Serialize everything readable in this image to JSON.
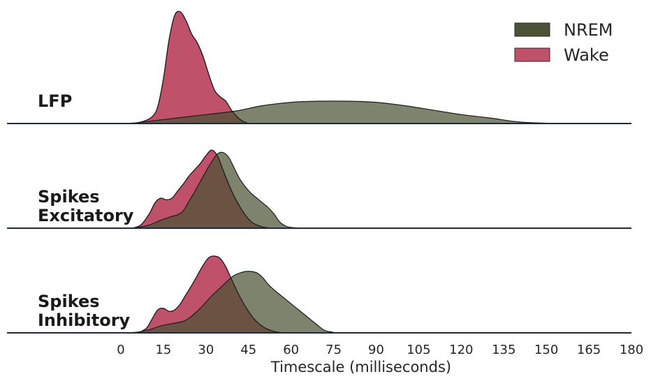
{
  "chart_data": {
    "type": "area",
    "xlabel": "Timescale (milliseconds)",
    "xlim": [
      -40,
      180
    ],
    "xticks": [
      0,
      15,
      30,
      45,
      60,
      75,
      90,
      105,
      120,
      135,
      150,
      165,
      180
    ],
    "legend": {
      "placement": "top-right",
      "entries": [
        "NREM",
        "Wake"
      ]
    },
    "colors": {
      "NREM": "#4b5334",
      "Wake": "#c0516a",
      "overlap": "#45301f",
      "baseline": "#1e2c3a"
    },
    "rows": [
      {
        "label": "LFP",
        "series": [
          {
            "name": "Wake",
            "x": [
              0,
              5,
              8,
              11,
              13,
              15,
              17,
              19,
              21,
              23,
              25,
              27,
              29,
              31,
              33,
              35,
              37,
              39,
              41,
              43,
              45
            ],
            "y": [
              0,
              0.005,
              0.02,
              0.06,
              0.15,
              0.4,
              0.75,
              0.97,
              1.0,
              0.92,
              0.8,
              0.72,
              0.6,
              0.44,
              0.3,
              0.24,
              0.2,
              0.12,
              0.06,
              0.02,
              0
            ]
          },
          {
            "name": "NREM",
            "x": [
              0,
              5,
              10,
              20,
              30,
              40,
              50,
              60,
              70,
              80,
              90,
              100,
              110,
              120,
              130,
              140,
              150,
              160,
              170
            ],
            "y": [
              0,
              0.005,
              0.02,
              0.05,
              0.08,
              0.11,
              0.16,
              0.19,
              0.2,
              0.2,
              0.19,
              0.16,
              0.12,
              0.08,
              0.05,
              0.015,
              0.003,
              0.0005,
              0
            ]
          }
        ]
      },
      {
        "label": "Spikes\nExcitatory",
        "series": [
          {
            "name": "Wake",
            "x": [
              4,
              7,
              10,
              12,
              14,
              16,
              18,
              20,
              22,
              24,
              26,
              28,
              30,
              32,
              34,
              36,
              38,
              40,
              42,
              44,
              46,
              48,
              50,
              52,
              54
            ],
            "y": [
              0,
              0.04,
              0.18,
              0.32,
              0.38,
              0.36,
              0.38,
              0.47,
              0.56,
              0.66,
              0.74,
              0.82,
              0.92,
              0.99,
              0.92,
              0.74,
              0.56,
              0.4,
              0.27,
              0.16,
              0.08,
              0.04,
              0.015,
              0.005,
              0
            ]
          },
          {
            "name": "NREM",
            "x": [
              2,
              6,
              10,
              14,
              18,
              20,
              22,
              24,
              26,
              28,
              30,
              32,
              34,
              36,
              38,
              40,
              42,
              44,
              46,
              48,
              50,
              52,
              54,
              56,
              58,
              60,
              64
            ],
            "y": [
              0,
              0.01,
              0.04,
              0.1,
              0.15,
              0.17,
              0.22,
              0.34,
              0.46,
              0.59,
              0.72,
              0.84,
              0.94,
              0.96,
              0.9,
              0.76,
              0.62,
              0.52,
              0.44,
              0.38,
              0.32,
              0.26,
              0.18,
              0.08,
              0.03,
              0.01,
              0
            ]
          }
        ]
      },
      {
        "label": "Spikes\nInhibitory",
        "series": [
          {
            "name": "Wake",
            "x": [
              6,
              9,
              11,
              13,
              15,
              17,
              19,
              21,
              23,
              25,
              27,
              29,
              31,
              33,
              35,
              37,
              39,
              41,
              43,
              45,
              47,
              49,
              51,
              53,
              55,
              57
            ],
            "y": [
              0,
              0.06,
              0.18,
              0.3,
              0.32,
              0.28,
              0.3,
              0.38,
              0.5,
              0.62,
              0.75,
              0.88,
              0.98,
              1.0,
              0.97,
              0.86,
              0.7,
              0.54,
              0.4,
              0.28,
              0.18,
              0.11,
              0.06,
              0.03,
              0.01,
              0
            ]
          },
          {
            "name": "NREM",
            "x": [
              2,
              6,
              10,
              14,
              18,
              22,
              24,
              26,
              28,
              30,
              32,
              34,
              36,
              38,
              40,
              42,
              44,
              46,
              48,
              50,
              52,
              54,
              56,
              58,
              60,
              62,
              64,
              66,
              68,
              70,
              72,
              76
            ],
            "y": [
              0,
              0.01,
              0.04,
              0.09,
              0.12,
              0.15,
              0.19,
              0.25,
              0.32,
              0.4,
              0.48,
              0.55,
              0.62,
              0.69,
              0.75,
              0.78,
              0.8,
              0.8,
              0.78,
              0.72,
              0.63,
              0.56,
              0.5,
              0.44,
              0.38,
              0.32,
              0.26,
              0.2,
              0.14,
              0.08,
              0.03,
              0
            ]
          }
        ]
      }
    ]
  }
}
